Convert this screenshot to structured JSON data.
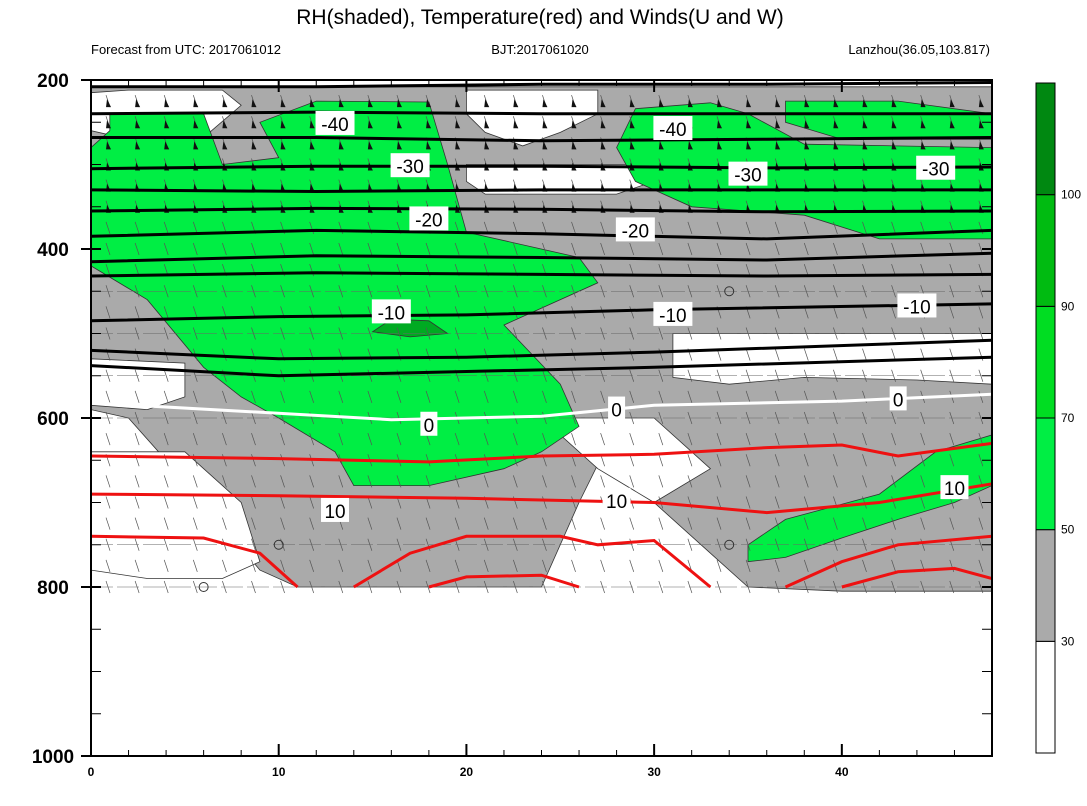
{
  "chart_data": {
    "type": "heatmap",
    "title": "RH(shaded), Temperature(red) and Winds(U and W)",
    "subtitle_left": "Forecast from UTC: 2017061012",
    "subtitle_center": "BJT:2017061020",
    "subtitle_right": "Lanzhou(36.05,103.817)",
    "xlim": [
      0,
      48
    ],
    "ylim": [
      1000,
      200
    ],
    "x_ticks": [
      "0",
      "10",
      "20",
      "30",
      "40"
    ],
    "y_ticks": [
      "200",
      "400",
      "600",
      "800",
      "1000"
    ],
    "colorbar": {
      "levels": [
        "30",
        "50",
        "70",
        "90",
        "100"
      ],
      "colors": [
        "#ffffff",
        "#aaaaaa",
        "#00ee44",
        "#00dd22",
        "#00bb11",
        "#008811"
      ]
    },
    "rh_regions": [
      {
        "level": "gray",
        "color": "#aaaaaa",
        "points": [
          [
            0,
            208
          ],
          [
            48,
            208
          ],
          [
            48,
            805
          ],
          [
            40,
            805
          ],
          [
            35,
            800
          ],
          [
            33,
            760
          ],
          [
            30,
            700
          ],
          [
            27,
            655
          ],
          [
            26,
            700
          ],
          [
            24,
            800
          ],
          [
            20,
            800
          ],
          [
            18,
            800
          ],
          [
            16,
            800
          ],
          [
            13,
            800
          ],
          [
            11,
            800
          ],
          [
            9,
            780
          ],
          [
            6,
            700
          ],
          [
            4,
            650
          ],
          [
            2,
            600
          ],
          [
            0,
            590
          ]
        ]
      },
      {
        "level": "white",
        "color": "#ffffff",
        "points": [
          [
            2,
            212
          ],
          [
            7,
            212
          ],
          [
            8,
            230
          ],
          [
            6,
            268
          ],
          [
            4,
            276
          ],
          [
            2,
            270
          ],
          [
            0,
            260
          ],
          [
            0,
            215
          ]
        ]
      },
      {
        "level": "white",
        "color": "#ffffff",
        "points": [
          [
            20,
            212
          ],
          [
            27,
            212
          ],
          [
            27,
            240
          ],
          [
            25,
            262
          ],
          [
            23,
            278
          ],
          [
            21,
            262
          ],
          [
            20,
            240
          ]
        ]
      },
      {
        "level": "white",
        "color": "#ffffff",
        "points": [
          [
            20,
            300
          ],
          [
            29,
            300
          ],
          [
            30,
            320
          ],
          [
            28,
            335
          ],
          [
            21,
            335
          ],
          [
            20,
            320
          ]
        ]
      },
      {
        "level": "white",
        "color": "#ffffff",
        "points": [
          [
            31,
            500
          ],
          [
            48,
            500
          ],
          [
            48,
            560
          ],
          [
            44,
            555
          ],
          [
            38,
            552
          ],
          [
            34,
            560
          ],
          [
            31,
            552
          ]
        ]
      },
      {
        "level": "white",
        "color": "#ffffff",
        "points": [
          [
            0,
            530
          ],
          [
            5,
            535
          ],
          [
            5,
            575
          ],
          [
            3,
            590
          ],
          [
            0,
            585
          ]
        ]
      },
      {
        "level": "white",
        "color": "#ffffff",
        "points": [
          [
            24,
            600
          ],
          [
            30,
            600
          ],
          [
            32,
            640
          ],
          [
            33,
            660
          ],
          [
            30,
            700
          ],
          [
            27,
            660
          ]
        ]
      },
      {
        "level": "white",
        "color": "#ffffff",
        "points": [
          [
            0,
            640
          ],
          [
            5,
            640
          ],
          [
            8,
            700
          ],
          [
            9,
            770
          ],
          [
            7,
            790
          ],
          [
            3,
            790
          ],
          [
            0,
            780
          ]
        ]
      },
      {
        "level": "green",
        "color": "#00ee44",
        "points": [
          [
            1,
            240
          ],
          [
            6,
            240
          ],
          [
            7,
            300
          ],
          [
            10,
            292
          ],
          [
            9,
            250
          ],
          [
            12,
            225
          ],
          [
            18,
            226
          ],
          [
            19,
            300
          ],
          [
            20,
            380
          ],
          [
            26,
            410
          ],
          [
            27,
            440
          ],
          [
            22,
            490
          ],
          [
            25,
            560
          ],
          [
            26,
            610
          ],
          [
            24,
            640
          ],
          [
            22,
            660
          ],
          [
            18,
            680
          ],
          [
            14,
            680
          ],
          [
            13,
            640
          ],
          [
            10,
            600
          ],
          [
            8,
            575
          ],
          [
            6,
            540
          ],
          [
            3,
            460
          ],
          [
            0,
            420
          ],
          [
            0,
            280
          ],
          [
            1,
            260
          ]
        ]
      },
      {
        "level": "green",
        "color": "#00ee44",
        "points": [
          [
            29,
            234
          ],
          [
            33,
            227
          ],
          [
            35,
            240
          ],
          [
            38,
            276
          ],
          [
            48,
            280
          ],
          [
            48,
            388
          ],
          [
            42,
            388
          ],
          [
            38,
            360
          ],
          [
            32,
            350
          ],
          [
            29,
            320
          ],
          [
            28,
            280
          ]
        ]
      },
      {
        "level": "green",
        "color": "#00ee44",
        "points": [
          [
            37,
            225
          ],
          [
            43,
            225
          ],
          [
            48,
            240
          ],
          [
            48,
            270
          ],
          [
            40,
            270
          ],
          [
            37,
            250
          ]
        ]
      },
      {
        "level": "green",
        "color": "#00ee44",
        "points": [
          [
            35,
            750
          ],
          [
            37,
            720
          ],
          [
            42,
            690
          ],
          [
            45,
            640
          ],
          [
            48,
            620
          ],
          [
            48,
            680
          ],
          [
            46,
            700
          ],
          [
            43,
            720
          ],
          [
            40,
            742
          ],
          [
            37,
            765
          ],
          [
            35,
            770
          ]
        ]
      },
      {
        "level": "dark",
        "color": "#00aa22",
        "points": [
          [
            16,
            483
          ],
          [
            18,
            485
          ],
          [
            19,
            500
          ],
          [
            17,
            504
          ],
          [
            15,
            498
          ]
        ]
      }
    ],
    "temperature_contours": [
      {
        "label": "-40",
        "color": "#000000",
        "points": [
          [
            0,
            268
          ],
          [
            12,
            268
          ],
          [
            24,
            272
          ],
          [
            36,
            270
          ],
          [
            48,
            268
          ]
        ],
        "label_at": [
          13,
          252
        ],
        "label2_at": [
          31,
          258
        ]
      },
      {
        "label": "-30",
        "color": "#000000",
        "points": [
          [
            0,
            305
          ],
          [
            12,
            302
          ],
          [
            24,
            302
          ],
          [
            36,
            304
          ],
          [
            48,
            303
          ]
        ],
        "label_at": [
          17,
          302
        ],
        "label2_at": [
          35,
          312
        ],
        "label3_at": [
          45,
          305
        ]
      },
      {
        "label": "-20",
        "color": "#000000",
        "points": [
          [
            0,
            385
          ],
          [
            12,
            378
          ],
          [
            24,
            382
          ],
          [
            36,
            388
          ],
          [
            48,
            378
          ]
        ],
        "label_at": [
          18,
          365
        ],
        "label2_at": [
          29,
          378
        ]
      },
      {
        "label": "-10",
        "color": "#000000",
        "points": [
          [
            0,
            485
          ],
          [
            10,
            480
          ],
          [
            20,
            478
          ],
          [
            30,
            472
          ],
          [
            48,
            465
          ]
        ],
        "label_at": [
          16,
          475
        ],
        "label2_at": [
          31,
          478
        ],
        "label3_at": [
          44,
          468
        ]
      },
      {
        "label": "0",
        "color": "#ffffff",
        "points": [
          [
            0,
            582
          ],
          [
            8,
            592
          ],
          [
            16,
            602
          ],
          [
            24,
            598
          ],
          [
            30,
            585
          ],
          [
            40,
            580
          ],
          [
            48,
            572
          ]
        ],
        "label_at": [
          18,
          608
        ],
        "label2_at": [
          28,
          590
        ],
        "label3_at": [
          43,
          578
        ]
      },
      {
        "label": "10",
        "color": "#ee1111",
        "points": [
          [
            0,
            690
          ],
          [
            10,
            692
          ],
          [
            20,
            695
          ],
          [
            30,
            700
          ],
          [
            36,
            712
          ],
          [
            42,
            700
          ],
          [
            48,
            678
          ]
        ],
        "label_at": [
          13,
          710
        ],
        "label2_at": [
          28,
          698
        ],
        "label3_at": [
          46,
          683
        ]
      }
    ],
    "extra_lines": [
      {
        "color": "#000000",
        "points": [
          [
            0,
            208
          ],
          [
            12,
            208
          ],
          [
            24,
            205
          ],
          [
            36,
            205
          ],
          [
            48,
            203
          ]
        ]
      },
      {
        "color": "#000000",
        "points": [
          [
            0,
            240
          ],
          [
            12,
            238
          ],
          [
            24,
            240
          ],
          [
            36,
            240
          ],
          [
            48,
            240
          ]
        ]
      },
      {
        "color": "#000000",
        "points": [
          [
            0,
            330
          ],
          [
            12,
            332
          ],
          [
            24,
            330
          ],
          [
            36,
            330
          ],
          [
            48,
            330
          ]
        ]
      },
      {
        "color": "#000000",
        "points": [
          [
            0,
            355
          ],
          [
            12,
            352
          ],
          [
            24,
            353
          ],
          [
            36,
            356
          ],
          [
            48,
            355
          ]
        ]
      },
      {
        "color": "#000000",
        "points": [
          [
            0,
            415
          ],
          [
            12,
            408
          ],
          [
            24,
            410
          ],
          [
            36,
            413
          ],
          [
            48,
            405
          ]
        ]
      },
      {
        "color": "#000000",
        "points": [
          [
            0,
            432
          ],
          [
            12,
            428
          ],
          [
            24,
            430
          ],
          [
            36,
            432
          ],
          [
            48,
            430
          ]
        ]
      },
      {
        "color": "#000000",
        "points": [
          [
            0,
            520
          ],
          [
            10,
            530
          ],
          [
            20,
            528
          ],
          [
            30,
            522
          ],
          [
            48,
            508
          ]
        ]
      },
      {
        "color": "#000000",
        "points": [
          [
            0,
            538
          ],
          [
            10,
            550
          ],
          [
            20,
            545
          ],
          [
            30,
            540
          ],
          [
            48,
            528
          ]
        ]
      },
      {
        "color": "#ee1111",
        "points": [
          [
            0,
            645
          ],
          [
            10,
            648
          ],
          [
            18,
            652
          ],
          [
            24,
            645
          ],
          [
            30,
            643
          ],
          [
            36,
            635
          ],
          [
            40,
            632
          ],
          [
            43,
            645
          ],
          [
            48,
            630
          ]
        ]
      },
      {
        "color": "#ee1111",
        "points": [
          [
            0,
            740
          ],
          [
            6,
            742
          ],
          [
            9,
            760
          ],
          [
            11,
            800
          ]
        ]
      },
      {
        "color": "#ee1111",
        "points": [
          [
            14,
            800
          ],
          [
            17,
            760
          ],
          [
            20,
            740
          ],
          [
            25,
            740
          ],
          [
            27,
            750
          ],
          [
            30,
            745
          ],
          [
            33,
            800
          ]
        ]
      },
      {
        "color": "#ee1111",
        "points": [
          [
            18,
            800
          ],
          [
            20,
            788
          ],
          [
            24,
            786
          ],
          [
            26,
            800
          ]
        ]
      },
      {
        "color": "#ee1111",
        "points": [
          [
            37,
            800
          ],
          [
            40,
            770
          ],
          [
            43,
            750
          ],
          [
            48,
            740
          ]
        ]
      },
      {
        "color": "#ee1111",
        "points": [
          [
            40,
            800
          ],
          [
            43,
            782
          ],
          [
            46,
            778
          ],
          [
            48,
            790
          ]
        ]
      }
    ],
    "calm_circles": [
      [
        34,
        450
      ],
      [
        10,
        750
      ],
      [
        34,
        750
      ],
      [
        6,
        800
      ]
    ],
    "barb_levels": [
      225,
      250,
      275,
      300,
      325,
      350,
      375,
      400,
      425,
      450,
      475,
      500,
      525,
      550,
      575,
      600,
      625,
      650,
      675,
      700,
      725,
      750,
      775,
      800
    ]
  }
}
